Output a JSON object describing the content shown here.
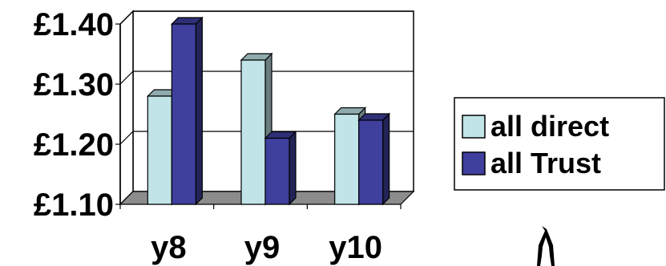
{
  "chart_data": {
    "type": "bar",
    "title": "",
    "xlabel": "",
    "ylabel": "",
    "categories": [
      "y8",
      "y9",
      "y10"
    ],
    "series": [
      {
        "name": "all direct",
        "values": [
          1.28,
          1.34,
          1.25
        ],
        "color": "#c0e4e8"
      },
      {
        "name": "all Trust",
        "values": [
          1.4,
          1.21,
          1.24
        ],
        "color": "#3f3f9e"
      }
    ],
    "ylim": [
      1.1,
      1.4
    ],
    "yticks": [
      1.1,
      1.2,
      1.3,
      1.4
    ],
    "ytick_labels": [
      "£1.10",
      "£1.20",
      "£1.30",
      "£1.40"
    ],
    "grid": true,
    "legend_position": "right",
    "style": "3d-clustered-bar"
  }
}
